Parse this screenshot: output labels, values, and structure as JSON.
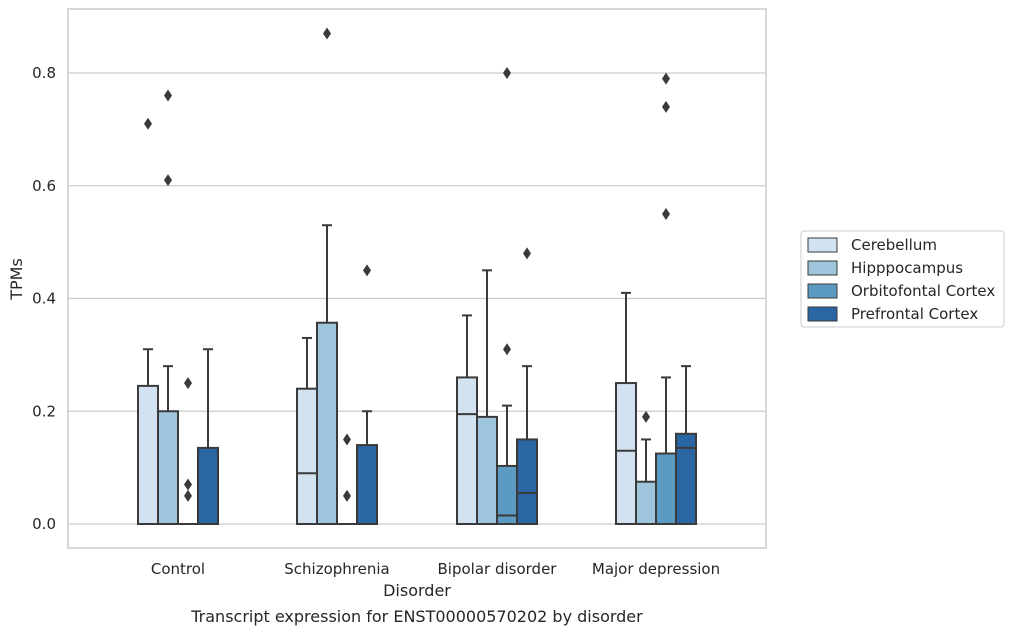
{
  "chart_data": {
    "type": "box",
    "xlabel": "Disorder",
    "ylabel": "TPMs",
    "caption": "Transcript expression for ENST00000570202 by disorder",
    "ylim": [
      -0.04,
      0.92
    ],
    "yticks": [
      0.0,
      0.2,
      0.4,
      0.6,
      0.8
    ],
    "ytick_labels": [
      "0.0",
      "0.2",
      "0.4",
      "0.6",
      "0.8"
    ],
    "grid": "horizontal",
    "legend_position": "right",
    "categories": [
      "Control",
      "Schizophrenia",
      "Bipolar disorder",
      "Major depression"
    ],
    "series": [
      {
        "name": "Cerebellum",
        "color": "#d3e2f0",
        "boxes": [
          {
            "min": 0.0,
            "q1": 0.0,
            "median": 0.0,
            "q3": 0.245,
            "max": 0.31,
            "outliers": [
              0.71
            ]
          },
          {
            "min": 0.0,
            "q1": 0.0,
            "median": 0.09,
            "q3": 0.24,
            "max": 0.33,
            "outliers": []
          },
          {
            "min": 0.0,
            "q1": 0.0,
            "median": 0.195,
            "q3": 0.26,
            "max": 0.37,
            "outliers": []
          },
          {
            "min": 0.0,
            "q1": 0.0,
            "median": 0.13,
            "q3": 0.25,
            "max": 0.41,
            "outliers": []
          }
        ]
      },
      {
        "name": "Hipppocampus",
        "color": "#9fc5dc",
        "boxes": [
          {
            "min": 0.0,
            "q1": 0.0,
            "median": 0.0,
            "q3": 0.2,
            "max": 0.28,
            "outliers": [
              0.76,
              0.61
            ]
          },
          {
            "min": 0.0,
            "q1": 0.0,
            "median": 0.0,
            "q3": 0.357,
            "max": 0.53,
            "outliers": [
              0.87
            ]
          },
          {
            "min": 0.0,
            "q1": 0.0,
            "median": 0.0,
            "q3": 0.19,
            "max": 0.45,
            "outliers": []
          },
          {
            "min": 0.0,
            "q1": 0.0,
            "median": 0.0,
            "q3": 0.075,
            "max": 0.15,
            "outliers": [
              0.19
            ]
          }
        ]
      },
      {
        "name": "Orbitofontal Cortex",
        "color": "#5b9ac3",
        "boxes": [
          {
            "min": 0.0,
            "q1": 0.0,
            "median": 0.0,
            "q3": 0.0,
            "max": 0.0,
            "outliers": [
              0.25,
              0.07,
              0.05
            ]
          },
          {
            "min": 0.0,
            "q1": 0.0,
            "median": 0.0,
            "q3": 0.0,
            "max": 0.0,
            "outliers": [
              0.15,
              0.05
            ]
          },
          {
            "min": 0.0,
            "q1": 0.0,
            "median": 0.015,
            "q3": 0.103,
            "max": 0.21,
            "outliers": [
              0.31,
              0.8
            ]
          },
          {
            "min": 0.0,
            "q1": 0.0,
            "median": 0.0,
            "q3": 0.125,
            "max": 0.26,
            "outliers": [
              0.79,
              0.74,
              0.55
            ]
          }
        ]
      },
      {
        "name": "Prefrontal Cortex",
        "color": "#2a66a3",
        "boxes": [
          {
            "min": 0.0,
            "q1": 0.0,
            "median": 0.0,
            "q3": 0.135,
            "max": 0.31,
            "outliers": []
          },
          {
            "min": 0.0,
            "q1": 0.0,
            "median": 0.0,
            "q3": 0.14,
            "max": 0.2,
            "outliers": [
              0.45
            ]
          },
          {
            "min": 0.0,
            "q1": 0.0,
            "median": 0.055,
            "q3": 0.15,
            "max": 0.28,
            "outliers": [
              0.48
            ]
          },
          {
            "min": 0.0,
            "q1": 0.0,
            "median": 0.135,
            "q3": 0.16,
            "max": 0.28,
            "outliers": []
          }
        ]
      }
    ]
  }
}
